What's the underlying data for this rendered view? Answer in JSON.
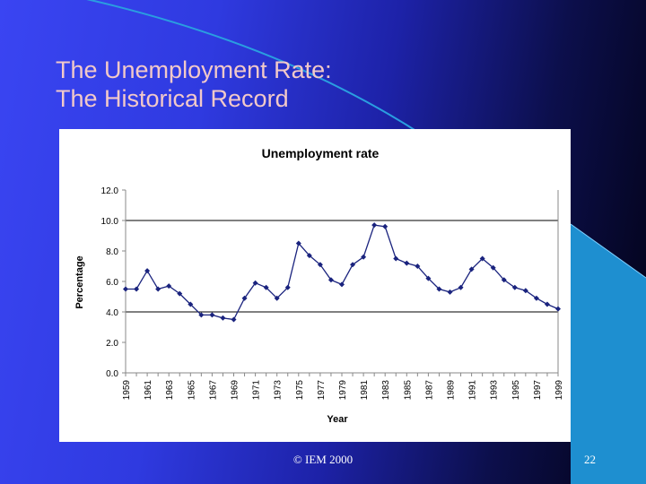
{
  "slide": {
    "title_lines": [
      "The Unemployment Rate:",
      "The Historical Record"
    ],
    "footer": "© IEM 2000",
    "page_number": "22",
    "colors": {
      "title": "#f2c9c9",
      "accent_line": "#2a9ee0",
      "accent_panel": "#1e8fd0"
    }
  },
  "chart_data": {
    "type": "line",
    "title": "Unemployment rate",
    "xlabel": "Year",
    "ylabel": "Percentage",
    "ylim": [
      0,
      12
    ],
    "yticks": [
      "0.0",
      "2.0",
      "4.0",
      "6.0",
      "8.0",
      "10.0",
      "12.0"
    ],
    "xticks": [
      "1959",
      "1961",
      "1963",
      "1965",
      "1967",
      "1969",
      "1971",
      "1973",
      "1975",
      "1977",
      "1979",
      "1981",
      "1983",
      "1985",
      "1987",
      "1989",
      "1991",
      "1993",
      "1995",
      "1997",
      "1999"
    ],
    "grid_lines_y": [
      4,
      10
    ],
    "series": [
      {
        "color": "#1a237e",
        "x": [
          1959,
          1960,
          1961,
          1962,
          1963,
          1964,
          1965,
          1966,
          1967,
          1968,
          1969,
          1970,
          1971,
          1972,
          1973,
          1974,
          1975,
          1976,
          1977,
          1978,
          1979,
          1980,
          1981,
          1982,
          1983,
          1984,
          1985,
          1986,
          1987,
          1988,
          1989,
          1990,
          1991,
          1992,
          1993,
          1994,
          1995,
          1996,
          1997,
          1998,
          1999
        ],
        "values": [
          5.5,
          5.5,
          6.7,
          5.5,
          5.7,
          5.2,
          4.5,
          3.8,
          3.8,
          3.6,
          3.5,
          4.9,
          5.9,
          5.6,
          4.9,
          5.6,
          8.5,
          7.7,
          7.1,
          6.1,
          5.8,
          7.1,
          7.6,
          9.7,
          9.6,
          7.5,
          7.2,
          7.0,
          6.2,
          5.5,
          5.3,
          5.6,
          6.8,
          7.5,
          6.9,
          6.1,
          5.6,
          5.4,
          4.9,
          4.5,
          4.2
        ]
      }
    ]
  }
}
